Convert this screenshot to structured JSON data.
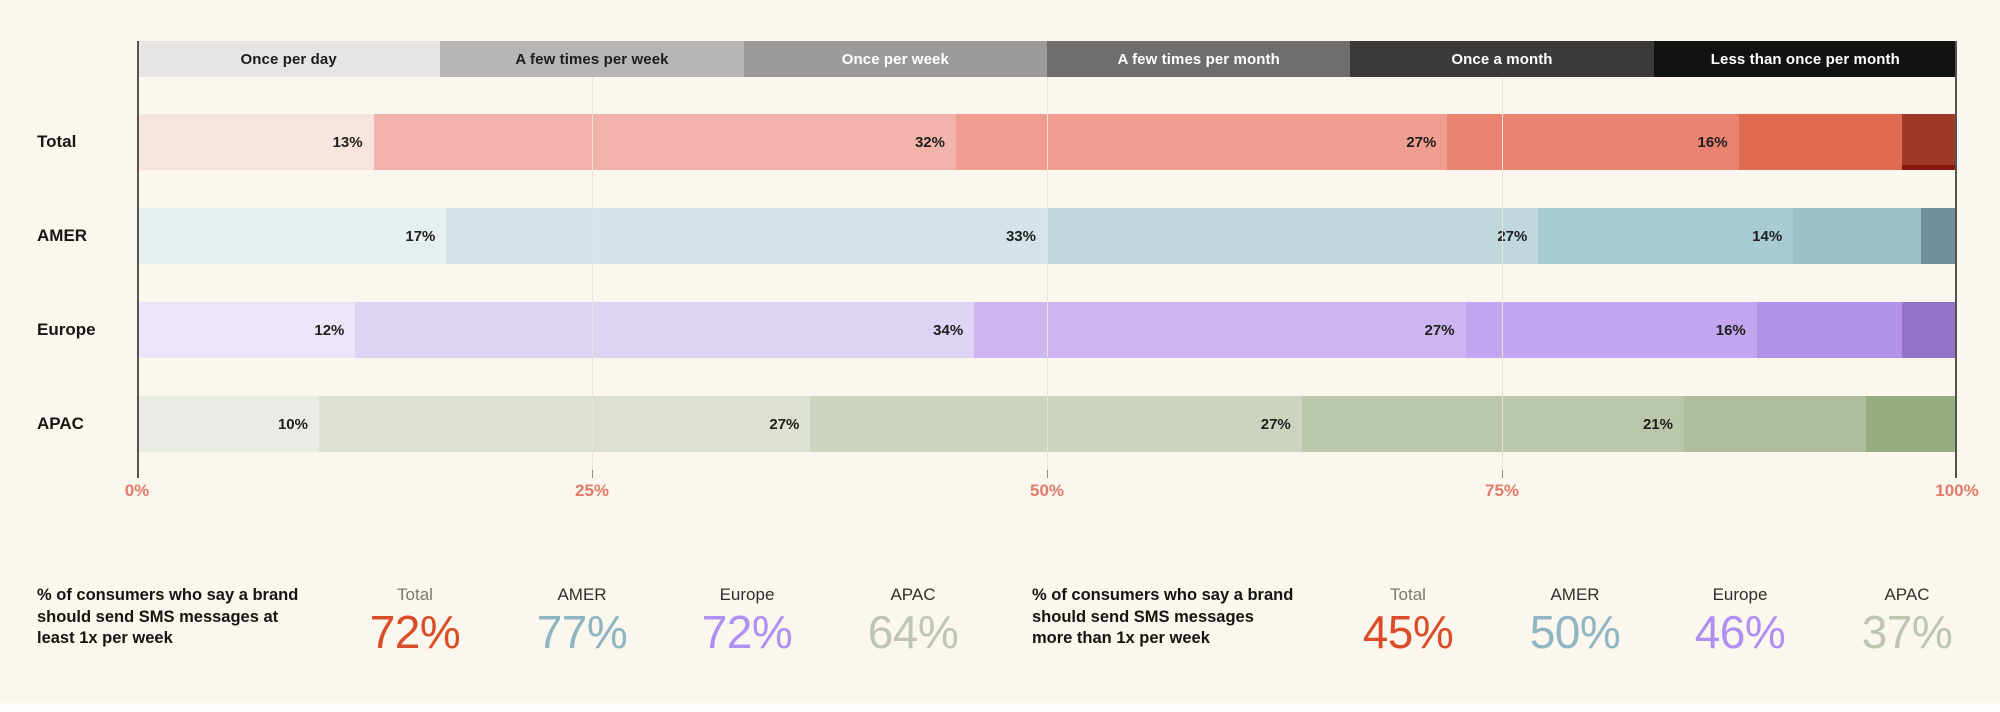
{
  "colors": {
    "background": "#fbf7ee",
    "axis_line": "#55534f",
    "gridline": "#e8e3d8",
    "tick_label_color": "#e17a68",
    "bar_label_color": "#20201e"
  },
  "chart_data": {
    "type": "stacked-bar-horizontal",
    "title": "",
    "categories": [
      "Once per day",
      "A few times per week",
      "Once per week",
      "A few times per month",
      "Once a month",
      "Less than once per month"
    ],
    "legend": [
      {
        "label": "Once per day",
        "bg": "#e6e5e3",
        "fg": "#1d1d1b"
      },
      {
        "label": "A few times per week",
        "bg": "#b7b6b4",
        "fg": "#1d1d1b"
      },
      {
        "label": "Once per week",
        "bg": "#9c9b99",
        "fg": "#ffffff"
      },
      {
        "label": "A few times per month",
        "bg": "#6f6e6c",
        "fg": "#ffffff"
      },
      {
        "label": "Once a month",
        "bg": "#3b3a38",
        "fg": "#ffffff"
      },
      {
        "label": "Less than once per month",
        "bg": "#121210",
        "fg": "#ffffff"
      }
    ],
    "x_axis": {
      "min": 0,
      "max": 100,
      "ticks": [
        {
          "label": "0%",
          "value": 0
        },
        {
          "label": "25%",
          "value": 25
        },
        {
          "label": "50%",
          "value": 50
        },
        {
          "label": "75%",
          "value": 75
        },
        {
          "label": "100%",
          "value": 100
        }
      ]
    },
    "rows": [
      {
        "label": "Total",
        "values": [
          13,
          32,
          27,
          16,
          9,
          3
        ],
        "segment_labels": [
          "13%",
          "32%",
          "27%",
          "16%",
          "",
          ""
        ],
        "colors": [
          "#f8e4df",
          "#f2b4aa",
          "#ee9d90",
          "#e9836f",
          "#e06a52",
          "#a03a28"
        ],
        "last_edge": "#8c150e"
      },
      {
        "label": "AMER",
        "values": [
          17,
          33,
          27,
          14,
          7,
          2
        ],
        "segment_labels": [
          "17%",
          "33%",
          "27%",
          "14%",
          "",
          ""
        ],
        "colors": [
          "#e7eef0",
          "#d4e3e7",
          "#bed8de",
          "#a9ccd4",
          "#9dbfc8",
          "#6f8f9e"
        ]
      },
      {
        "label": "Europe",
        "values": [
          12,
          34,
          27,
          16,
          8,
          3
        ],
        "segment_labels": [
          "12%",
          "34%",
          "27%",
          "16%",
          "",
          ""
        ],
        "colors": [
          "#ece5f9",
          "#ded2f5",
          "#cdb5f1",
          "#c2a6ef",
          "#b192e9",
          "#9372c8"
        ]
      },
      {
        "label": "APAC",
        "values": [
          10,
          27,
          27,
          21,
          10,
          5
        ],
        "segment_labels": [
          "10%",
          "27%",
          "27%",
          "21%",
          "",
          ""
        ],
        "colors": [
          "#e9ece4",
          "#dce1d3",
          "#ccd4c0",
          "#bac7a9",
          "#aebd9b",
          "#97ab81"
        ]
      }
    ]
  },
  "summary": {
    "groups": [
      {
        "description_lines": [
          "% of consumers who say a brand",
          "should send SMS messages at",
          "least 1x per week"
        ],
        "stats": [
          {
            "label": "Total",
            "value": "72%",
            "value_color": "#d94e28",
            "label_color": "#7b7974"
          },
          {
            "label": "AMER",
            "value": "77%",
            "value_color": "#8fb5c3",
            "label_color": "#2f2f2d"
          },
          {
            "label": "Europe",
            "value": "72%",
            "value_color": "#b08ff2",
            "label_color": "#2f2f2d"
          },
          {
            "label": "APAC",
            "value": "64%",
            "value_color": "#bdc6b3",
            "label_color": "#2f2f2d"
          }
        ]
      },
      {
        "description_lines": [
          "% of consumers who say a brand",
          "should send SMS messages",
          "more than 1x per week"
        ],
        "stats": [
          {
            "label": "Total",
            "value": "45%",
            "value_color": "#d94e28",
            "label_color": "#7b7974"
          },
          {
            "label": "AMER",
            "value": "50%",
            "value_color": "#8fb5c3",
            "label_color": "#2f2f2d"
          },
          {
            "label": "Europe",
            "value": "46%",
            "value_color": "#b08ff2",
            "label_color": "#2f2f2d"
          },
          {
            "label": "APAC",
            "value": "37%",
            "value_color": "#bdc6b3",
            "label_color": "#2f2f2d"
          }
        ]
      }
    ]
  },
  "layout_hints": {
    "legend_position": "top",
    "grid": "vertical-25pct",
    "bar_value_labels": "right-aligned-inside-first-four-segments"
  }
}
